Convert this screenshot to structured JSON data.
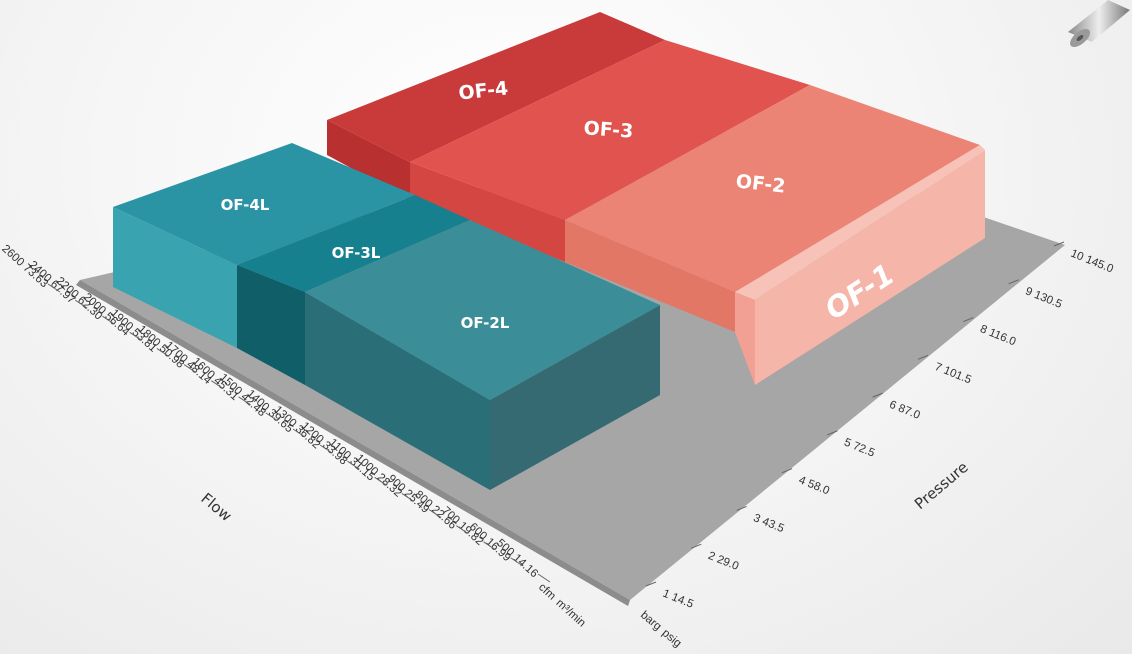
{
  "chart_data": {
    "type": "3d-block",
    "flow_axis": {
      "label": "Flow",
      "unit_cfm": "cfm",
      "unit_m3": "m³/min",
      "ticks": [
        {
          "cfm": "500",
          "m3": "14.16"
        },
        {
          "cfm": "600",
          "m3": "16.99"
        },
        {
          "cfm": "700",
          "m3": "19.82"
        },
        {
          "cfm": "800",
          "m3": "22.66"
        },
        {
          "cfm": "900",
          "m3": "25.49"
        },
        {
          "cfm": "1000",
          "m3": "28.32"
        },
        {
          "cfm": "1100",
          "m3": "31.15"
        },
        {
          "cfm": "1200",
          "m3": "33.98"
        },
        {
          "cfm": "1300",
          "m3": "36.82"
        },
        {
          "cfm": "1400",
          "m3": "39.65"
        },
        {
          "cfm": "1500",
          "m3": "42.48"
        },
        {
          "cfm": "1600",
          "m3": "45.31"
        },
        {
          "cfm": "1700",
          "m3": "48.14"
        },
        {
          "cfm": "1800",
          "m3": "50.98"
        },
        {
          "cfm": "1900",
          "m3": "53.81"
        },
        {
          "cfm": "2000",
          "m3": "56.64"
        },
        {
          "cfm": "2200",
          "m3": "62.30"
        },
        {
          "cfm": "2400",
          "m3": "67.97"
        },
        {
          "cfm": "2600",
          "m3": "73.63"
        }
      ]
    },
    "pressure_axis": {
      "label": "Pressure",
      "unit_barg": "barg",
      "unit_psig": "psig",
      "ticks": [
        {
          "barg": "1",
          "psig": "14.5"
        },
        {
          "barg": "2",
          "psig": "29.0"
        },
        {
          "barg": "3",
          "psig": "43.5"
        },
        {
          "barg": "4",
          "psig": "58.0"
        },
        {
          "barg": "5",
          "psig": "72.5"
        },
        {
          "barg": "6",
          "psig": "87.0"
        },
        {
          "barg": "7",
          "psig": "101.5"
        },
        {
          "barg": "8",
          "psig": "116.0"
        },
        {
          "barg": "9",
          "psig": "130.5"
        },
        {
          "barg": "10",
          "psig": "145.0"
        }
      ]
    },
    "blocks": [
      {
        "name": "OF-4",
        "color": "#c93a3a"
      },
      {
        "name": "OF-3",
        "color": "#e0534f"
      },
      {
        "name": "OF-2",
        "color": "#ec8476"
      },
      {
        "name": "OF-1",
        "color": "#f3aa9d"
      },
      {
        "name": "OF-4L",
        "color": "#2a94a4"
      },
      {
        "name": "OF-3L",
        "color": "#16808f"
      },
      {
        "name": "OF-2L",
        "color": "#3b8e98"
      }
    ]
  }
}
